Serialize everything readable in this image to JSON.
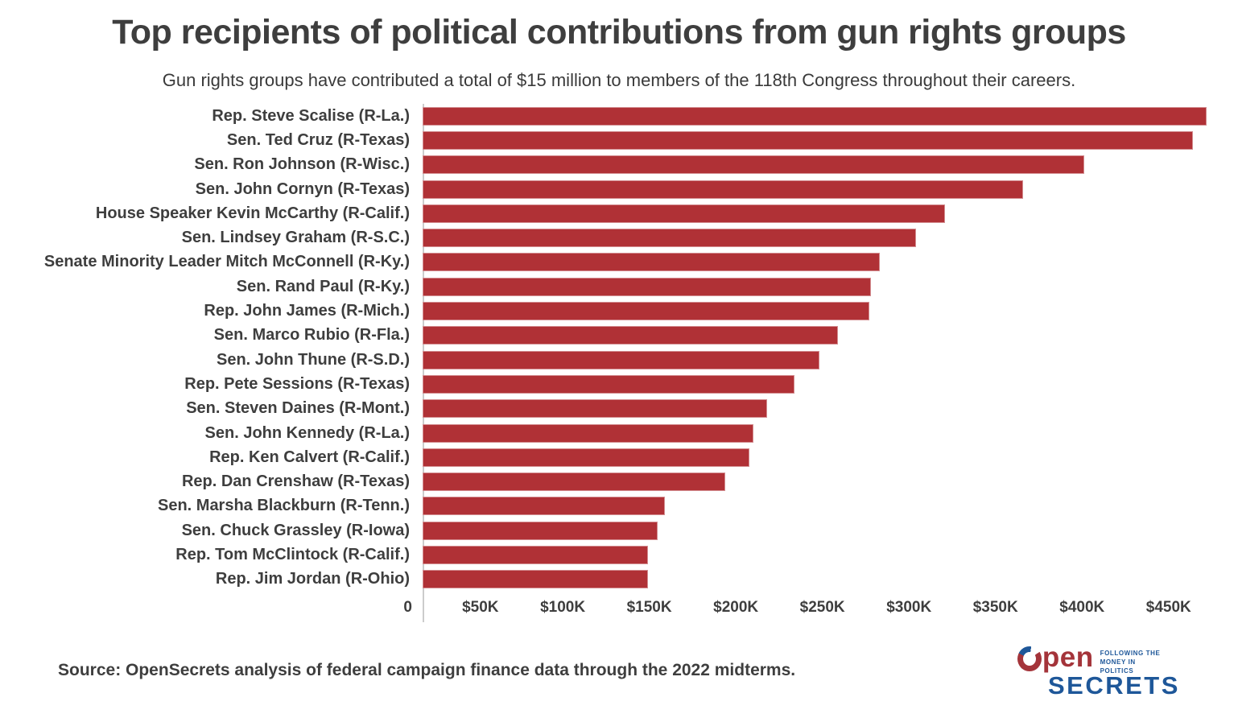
{
  "header": {
    "title": "Top recipients of political contributions from gun rights groups",
    "subtitle": "Gun rights groups have contributed a total of $15 million to members of the 118th Congress throughout their careers."
  },
  "chart_data": {
    "type": "bar",
    "orientation": "horizontal",
    "title": "Top recipients of political contributions from gun rights groups",
    "subtitle": "Gun rights groups have contributed a total of $15 million to members of the 118th Congress throughout their careers.",
    "categories": [
      "Rep. Steve Scalise (R-La.)",
      "Sen. Ted Cruz (R-Texas)",
      "Sen. Ron Johnson (R-Wisc.)",
      "Sen. John Cornyn (R-Texas)",
      "House Speaker Kevin McCarthy (R-Calif.)",
      "Sen. Lindsey Graham (R-S.C.)",
      "Senate Minority Leader Mitch McConnell (R-Ky.)",
      "Sen. Rand Paul (R-Ky.)",
      "Rep. John James (R-Mich.)",
      "Sen. Marco Rubio (R-Fla.)",
      "Sen. John Thune (R-S.D.)",
      "Rep. Pete Sessions (R-Texas)",
      "Sen. Steven Daines (R-Mont.)",
      "Sen. John Kennedy (R-La.)",
      "Rep. Ken Calvert (R-Calif.)",
      "Rep. Dan Crenshaw (R-Texas)",
      "Sen. Marsha Blackburn (R-Tenn.)",
      "Sen. Chuck Grassley (R-Iowa)",
      "Rep. Tom McClintock (R-Calif.)",
      "Rep. Jim Jordan (R-Ohio)"
    ],
    "values": [
      453000,
      445000,
      382000,
      347000,
      302000,
      285000,
      264000,
      259000,
      258000,
      240000,
      229000,
      215000,
      199000,
      191000,
      189000,
      175000,
      140000,
      136000,
      130000,
      130000
    ],
    "value_unit": "USD",
    "xlabel": "",
    "ylabel": "",
    "xlim": [
      0,
      458000
    ],
    "x_ticks": [
      {
        "label": "0",
        "value": 0
      },
      {
        "label": "$50K",
        "value": 50000
      },
      {
        "label": "$100K",
        "value": 100000
      },
      {
        "label": "$150K",
        "value": 150000
      },
      {
        "label": "$200K",
        "value": 200000
      },
      {
        "label": "$250K",
        "value": 250000
      },
      {
        "label": "$300K",
        "value": 300000
      },
      {
        "label": "$350K",
        "value": 350000
      },
      {
        "label": "$400K",
        "value": 400000
      },
      {
        "label": "$450K",
        "value": 450000
      }
    ],
    "grid": false,
    "legend": "none",
    "bar_color": "#B03136"
  },
  "footer": {
    "source": "Source: OpenSecrets analysis of federal campaign finance data through the 2022 midterms.",
    "logo": {
      "open": "pen",
      "secrets": "SECRETS",
      "tagline_line1": "FOLLOWING THE",
      "tagline_line2": "MONEY IN POLITICS"
    }
  },
  "colors": {
    "bar": "#B03136",
    "text": "#3E3E3E",
    "axis_line": "#CCCCCC",
    "logo_red": "#A4343A",
    "logo_blue": "#1E5799"
  }
}
